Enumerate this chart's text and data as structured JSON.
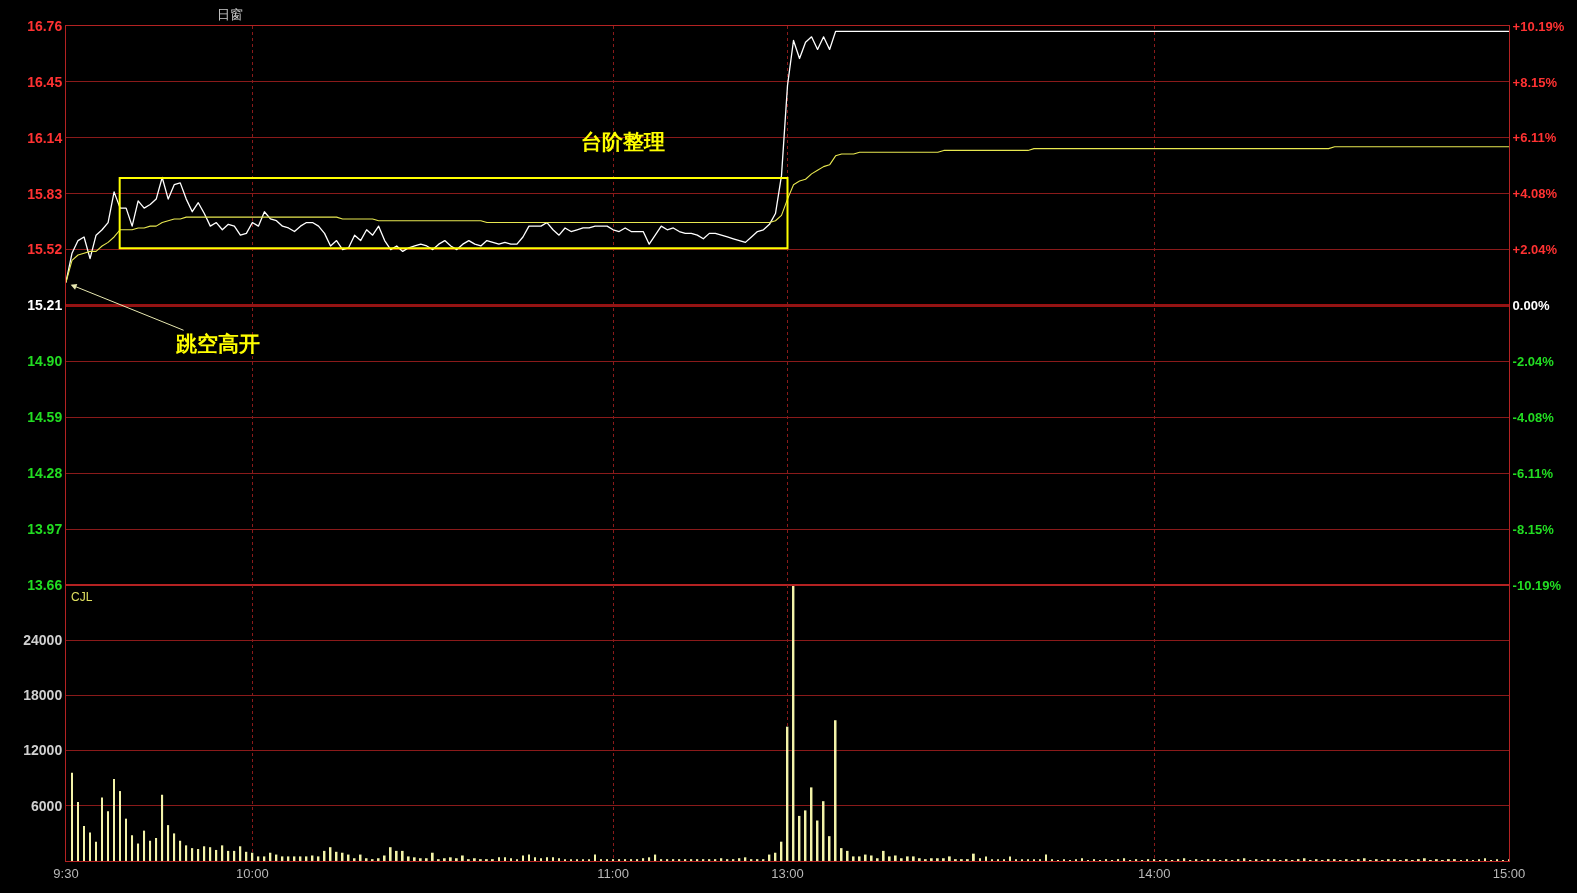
{
  "chart_data": [
    {
      "type": "line",
      "title": "日窗",
      "categories": [
        null,
        null,
        null,
        null,
        null,
        null,
        null,
        null,
        null,
        null,
        null,
        null,
        null,
        null,
        null,
        null,
        null,
        null,
        null,
        null,
        null,
        null,
        null,
        null,
        null,
        null,
        null,
        null,
        null,
        null,
        null,
        null,
        null,
        null,
        null,
        null,
        null,
        null,
        null,
        null,
        null,
        null,
        null,
        null,
        null,
        null,
        null,
        null,
        null,
        null,
        null,
        null,
        null,
        null,
        null,
        null,
        null,
        null,
        null,
        null,
        null,
        null,
        null,
        null,
        null,
        null,
        null,
        null,
        null,
        null,
        null,
        null,
        null,
        null,
        null,
        null,
        null,
        null,
        null,
        null,
        null,
        null,
        null,
        null,
        null,
        null,
        null,
        null,
        null,
        null,
        null,
        null,
        null,
        null,
        null,
        null,
        null,
        null,
        null,
        null,
        null,
        null,
        null,
        null,
        null,
        null,
        null,
        null,
        null,
        null,
        null,
        null,
        null,
        null,
        null,
        null,
        null,
        null,
        null,
        null,
        null,
        null,
        null,
        null,
        null,
        null,
        null,
        null,
        null,
        null,
        null,
        null,
        null,
        null,
        null,
        null,
        null,
        null,
        null,
        null,
        null,
        null,
        null,
        null,
        null,
        null,
        null,
        null,
        null,
        null,
        null,
        null,
        null,
        null,
        null,
        null,
        null,
        null,
        null,
        null,
        null,
        null,
        null,
        null,
        null,
        null,
        null,
        null,
        null,
        null,
        null,
        null,
        null,
        null,
        null,
        null,
        null,
        null,
        null,
        null,
        null,
        null,
        null,
        null,
        null,
        null,
        null,
        null,
        null,
        null,
        null,
        null,
        null,
        null,
        null,
        null,
        null,
        null,
        null,
        null,
        null,
        null,
        null,
        null,
        null,
        null,
        null,
        null,
        null,
        null,
        null,
        null,
        null,
        null,
        null,
        null,
        null,
        null,
        null,
        null,
        null,
        null,
        null,
        null,
        null,
        null,
        null,
        null,
        null,
        null,
        null,
        null,
        null,
        null,
        null,
        null,
        null,
        null,
        null,
        null,
        null
      ],
      "series": [
        {
          "color": "#ffffff",
          "values": [
            15.34,
            15.5,
            15.57,
            15.59,
            15.47,
            15.6,
            15.63,
            15.67,
            15.84,
            15.75,
            15.75,
            15.65,
            15.79,
            15.75,
            15.77,
            15.8,
            15.92,
            15.8,
            15.88,
            15.89,
            15.8,
            15.73,
            15.78,
            15.72,
            15.65,
            15.67,
            15.63,
            15.66,
            15.65,
            15.6,
            15.61,
            15.67,
            15.65,
            15.73,
            15.69,
            15.68,
            15.65,
            15.64,
            15.62,
            15.65,
            15.67,
            15.67,
            15.65,
            15.61,
            15.54,
            15.57,
            15.52,
            15.53,
            15.6,
            15.57,
            15.63,
            15.6,
            15.65,
            15.57,
            15.52,
            15.54,
            15.51,
            15.53,
            15.54,
            15.55,
            15.54,
            15.52,
            15.55,
            15.57,
            15.54,
            15.52,
            15.55,
            15.57,
            15.55,
            15.54,
            15.57,
            15.56,
            15.55,
            15.56,
            15.55,
            15.55,
            15.59,
            15.65,
            15.65,
            15.65,
            15.67,
            15.63,
            15.6,
            15.64,
            15.62,
            15.63,
            15.64,
            15.64,
            15.65,
            15.65,
            15.65,
            15.63,
            15.62,
            15.64,
            15.62,
            15.62,
            15.62,
            15.55,
            15.6,
            15.65,
            15.63,
            15.64,
            15.62,
            15.61,
            15.61,
            15.6,
            15.58,
            15.61,
            15.61,
            15.6,
            15.59,
            15.58,
            15.57,
            15.56,
            15.59,
            15.62,
            15.63,
            15.66,
            15.72,
            15.93,
            16.43,
            16.68,
            16.58,
            16.67,
            16.7,
            16.63,
            16.7,
            16.63,
            16.73,
            16.73,
            16.73,
            16.73,
            16.73,
            16.73,
            16.73,
            16.73,
            16.73,
            16.73,
            16.73,
            16.73,
            16.73,
            16.73,
            16.73,
            16.73,
            16.73,
            16.73,
            16.73,
            16.73,
            16.73,
            16.73,
            16.73,
            16.73,
            16.73,
            16.73,
            16.73,
            16.73,
            16.73,
            16.73,
            16.73,
            16.73,
            16.73,
            16.73,
            16.73,
            16.73,
            16.73,
            16.73,
            16.73,
            16.73,
            16.73,
            16.73,
            16.73,
            16.73,
            16.73,
            16.73,
            16.73,
            16.73,
            16.73,
            16.73,
            16.73,
            16.73,
            16.73,
            16.73,
            16.73,
            16.73,
            16.73,
            16.73,
            16.73,
            16.73,
            16.73,
            16.73,
            16.73,
            16.73,
            16.73,
            16.73,
            16.73,
            16.73,
            16.73,
            16.73,
            16.73,
            16.73,
            16.73,
            16.73,
            16.73,
            16.73,
            16.73,
            16.73,
            16.73,
            16.73,
            16.73,
            16.73,
            16.73,
            16.73,
            16.73,
            16.73,
            16.73,
            16.73,
            16.73,
            16.73,
            16.73,
            16.73,
            16.73,
            16.73,
            16.73,
            16.73,
            16.73,
            16.73,
            16.73,
            16.73,
            16.73,
            16.73,
            16.73,
            16.73,
            16.73,
            16.73,
            16.73,
            16.73,
            16.73,
            16.73,
            16.73,
            16.73,
            16.73
          ]
        },
        {
          "color": "#e8e850",
          "values": [
            15.34,
            15.46,
            15.49,
            15.5,
            15.51,
            15.51,
            15.54,
            15.56,
            15.59,
            15.63,
            15.63,
            15.63,
            15.64,
            15.64,
            15.65,
            15.65,
            15.67,
            15.68,
            15.69,
            15.69,
            15.7,
            15.7,
            15.7,
            15.7,
            15.7,
            15.7,
            15.7,
            15.7,
            15.7,
            15.7,
            15.7,
            15.7,
            15.7,
            15.7,
            15.7,
            15.7,
            15.7,
            15.7,
            15.7,
            15.7,
            15.7,
            15.7,
            15.7,
            15.7,
            15.7,
            15.7,
            15.69,
            15.69,
            15.69,
            15.69,
            15.69,
            15.69,
            15.68,
            15.68,
            15.68,
            15.68,
            15.68,
            15.68,
            15.68,
            15.68,
            15.68,
            15.68,
            15.68,
            15.68,
            15.68,
            15.68,
            15.68,
            15.68,
            15.68,
            15.68,
            15.67,
            15.67,
            15.67,
            15.67,
            15.67,
            15.67,
            15.67,
            15.67,
            15.67,
            15.67,
            15.67,
            15.67,
            15.67,
            15.67,
            15.67,
            15.67,
            15.67,
            15.67,
            15.67,
            15.67,
            15.67,
            15.67,
            15.67,
            15.67,
            15.67,
            15.67,
            15.67,
            15.67,
            15.67,
            15.67,
            15.67,
            15.67,
            15.67,
            15.67,
            15.67,
            15.67,
            15.67,
            15.67,
            15.67,
            15.67,
            15.67,
            15.67,
            15.67,
            15.67,
            15.67,
            15.67,
            15.67,
            15.67,
            15.68,
            15.71,
            15.8,
            15.88,
            15.9,
            15.91,
            15.94,
            15.96,
            15.98,
            15.99,
            16.04,
            16.05,
            16.05,
            16.05,
            16.06,
            16.06,
            16.06,
            16.06,
            16.06,
            16.06,
            16.06,
            16.06,
            16.06,
            16.06,
            16.06,
            16.06,
            16.06,
            16.06,
            16.07,
            16.07,
            16.07,
            16.07,
            16.07,
            16.07,
            16.07,
            16.07,
            16.07,
            16.07,
            16.07,
            16.07,
            16.07,
            16.07,
            16.07,
            16.08,
            16.08,
            16.08,
            16.08,
            16.08,
            16.08,
            16.08,
            16.08,
            16.08,
            16.08,
            16.08,
            16.08,
            16.08,
            16.08,
            16.08,
            16.08,
            16.08,
            16.08,
            16.08,
            16.08,
            16.08,
            16.08,
            16.08,
            16.08,
            16.08,
            16.08,
            16.08,
            16.08,
            16.08,
            16.08,
            16.08,
            16.08,
            16.08,
            16.08,
            16.08,
            16.08,
            16.08,
            16.08,
            16.08,
            16.08,
            16.08,
            16.08,
            16.08,
            16.08,
            16.08,
            16.08,
            16.08,
            16.08,
            16.08,
            16.08,
            16.09,
            16.09,
            16.09,
            16.09,
            16.09,
            16.09,
            16.09,
            16.09,
            16.09,
            16.09,
            16.09,
            16.09,
            16.09,
            16.09,
            16.09,
            16.09,
            16.09,
            16.09,
            16.09,
            16.09,
            16.09,
            16.09,
            16.09,
            16.09,
            16.09,
            16.09,
            16.09,
            16.09,
            16.09,
            16.09
          ]
        }
      ],
      "ylim": [
        13.66,
        16.76
      ],
      "yticks": [
        16.76,
        16.45,
        16.14,
        15.83,
        15.52,
        15.21,
        {
          "value": 14.9,
          "label": "14.90"
        },
        14.59,
        14.28,
        13.97,
        13.66
      ],
      "y2lim": [
        -10.19,
        10.19
      ],
      "y2ticks": [
        {
          "value": 10.19,
          "label": "+10.19%"
        },
        {
          "value": 8.15,
          "label": "+8.15%"
        },
        {
          "value": 6.11,
          "label": "+6.11%"
        },
        {
          "value": 4.08,
          "label": "+4.08%"
        },
        {
          "value": 2.04,
          "label": "+2.04%"
        },
        {
          "value": 0,
          "label": "0.00%"
        },
        {
          "value": -2.04,
          "label": "-2.04%"
        },
        {
          "value": -4.08,
          "label": "-4.08%"
        },
        {
          "value": -6.11,
          "label": "-6.11%"
        },
        {
          "value": -8.15,
          "label": "-8.15%"
        },
        {
          "value": -10.19,
          "label": "-10.19%"
        }
      ],
      "tick_labels": "y",
      "grid": true,
      "ref_lines": [
        {
          "axis": "y",
          "value": 15.21,
          "color": "#d01414"
        }
      ],
      "annotations": [
        "台阶整理",
        "跳空高开"
      ]
    },
    {
      "type": "bar",
      "title": "CJL",
      "color": "#f2f2a8",
      "categories": [
        "9:30",
        null,
        null,
        null,
        null,
        null,
        null,
        null,
        null,
        null,
        null,
        null,
        null,
        null,
        null,
        null,
        null,
        null,
        null,
        null,
        null,
        null,
        null,
        null,
        null,
        null,
        null,
        null,
        null,
        null,
        null,
        "10:00",
        null,
        null,
        null,
        null,
        null,
        null,
        null,
        null,
        null,
        null,
        null,
        null,
        null,
        null,
        null,
        null,
        null,
        null,
        null,
        null,
        null,
        null,
        null,
        null,
        null,
        null,
        null,
        null,
        null,
        null,
        null,
        null,
        null,
        null,
        null,
        null,
        null,
        null,
        null,
        null,
        null,
        null,
        null,
        null,
        null,
        null,
        null,
        null,
        null,
        null,
        null,
        null,
        null,
        null,
        null,
        null,
        null,
        null,
        null,
        "11:00",
        null,
        null,
        null,
        null,
        null,
        null,
        null,
        null,
        null,
        null,
        null,
        null,
        null,
        null,
        null,
        null,
        null,
        null,
        null,
        null,
        null,
        null,
        null,
        null,
        null,
        null,
        null,
        null,
        "13:00",
        null,
        null,
        null,
        null,
        null,
        null,
        null,
        null,
        null,
        null,
        null,
        null,
        null,
        null,
        null,
        null,
        null,
        null,
        null,
        null,
        null,
        null,
        null,
        null,
        null,
        null,
        null,
        null,
        null,
        null,
        null,
        null,
        null,
        null,
        null,
        null,
        null,
        null,
        null,
        null,
        null,
        null,
        null,
        null,
        null,
        null,
        null,
        null,
        null,
        null,
        null,
        null,
        null,
        null,
        null,
        null,
        null,
        null,
        null,
        null,
        "14:00",
        null,
        null,
        null,
        null,
        null,
        null,
        null,
        null,
        null,
        null,
        null,
        null,
        null,
        null,
        null,
        null,
        null,
        null,
        null,
        null,
        null,
        null,
        null,
        null,
        null,
        null,
        null,
        null,
        null,
        null,
        null,
        null,
        null,
        null,
        null,
        null,
        null,
        null,
        null,
        null,
        null,
        null,
        null,
        null,
        null,
        null,
        null,
        null,
        null,
        null,
        null,
        null,
        null,
        null,
        null,
        null,
        null,
        null,
        "15:00"
      ],
      "values": [
        null,
        9600,
        6400,
        3800,
        3100,
        2100,
        6900,
        5400,
        8900,
        7600,
        4600,
        2800,
        1900,
        3300,
        2200,
        2500,
        7200,
        3900,
        3000,
        2200,
        1700,
        1400,
        1300,
        1600,
        1500,
        1200,
        1700,
        1100,
        1100,
        1600,
        1000,
        900,
        500,
        500,
        900,
        700,
        500,
        500,
        500,
        500,
        500,
        600,
        500,
        1100,
        1500,
        1000,
        900,
        700,
        300,
        700,
        300,
        200,
        300,
        600,
        1500,
        1100,
        1100,
        500,
        400,
        300,
        300,
        900,
        200,
        300,
        400,
        300,
        600,
        200,
        300,
        200,
        200,
        200,
        400,
        400,
        300,
        200,
        600,
        700,
        400,
        300,
        400,
        400,
        300,
        200,
        200,
        200,
        200,
        200,
        700,
        200,
        200,
        200,
        200,
        200,
        200,
        200,
        300,
        400,
        700,
        200,
        200,
        200,
        200,
        200,
        200,
        200,
        200,
        200,
        200,
        300,
        200,
        200,
        300,
        400,
        200,
        200,
        200,
        700,
        900,
        2100,
        14600,
        29900,
        4900,
        5500,
        8000,
        4400,
        6500,
        2700,
        15300,
        1400,
        1100,
        500,
        500,
        700,
        600,
        300,
        1100,
        500,
        600,
        300,
        500,
        500,
        300,
        200,
        300,
        300,
        300,
        500,
        200,
        200,
        200,
        800,
        300,
        500,
        200,
        200,
        200,
        500,
        200,
        200,
        200,
        200,
        200,
        700,
        200,
        100,
        200,
        100,
        200,
        300,
        100,
        200,
        100,
        200,
        100,
        200,
        300,
        100,
        200,
        100,
        200,
        200,
        100,
        200,
        100,
        200,
        300,
        100,
        200,
        100,
        200,
        200,
        100,
        200,
        100,
        200,
        300,
        100,
        200,
        100,
        200,
        200,
        100,
        200,
        100,
        200,
        300,
        100,
        200,
        100,
        200,
        200,
        100,
        200,
        100,
        200,
        300,
        100,
        200,
        100,
        200,
        200,
        100,
        200,
        100,
        200,
        300,
        100,
        200,
        100,
        200,
        200,
        100,
        200,
        100,
        200,
        300,
        100,
        200,
        100,
        200
      ],
      "ylim": [
        0,
        30000
      ],
      "yticks": [
        6000,
        12000,
        18000,
        24000
      ],
      "grid": true
    }
  ]
}
